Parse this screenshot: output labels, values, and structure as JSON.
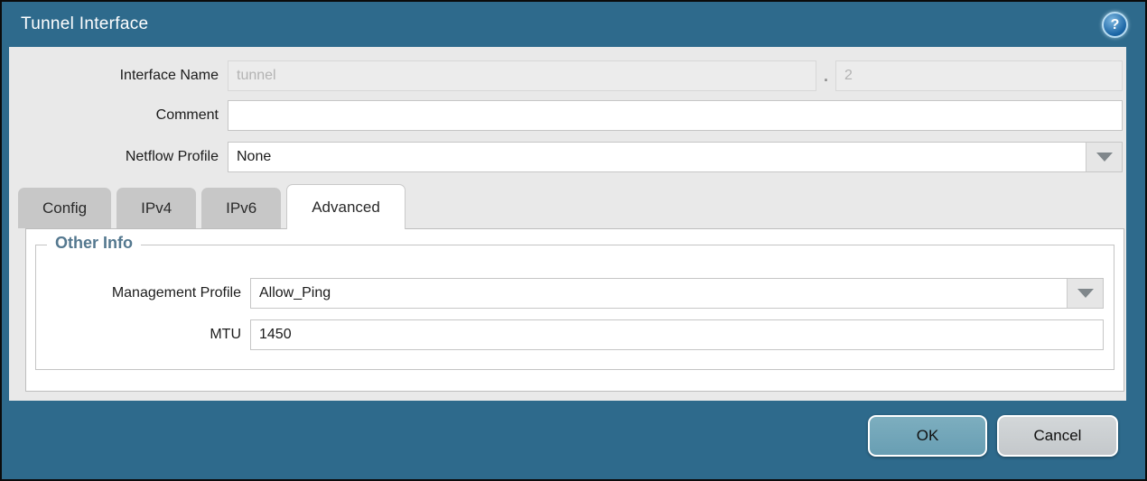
{
  "dialog": {
    "title": "Tunnel Interface"
  },
  "form": {
    "interface_name": {
      "label": "Interface Name",
      "base_value": "tunnel",
      "separator": ".",
      "sub_value": "2"
    },
    "comment": {
      "label": "Comment",
      "value": ""
    },
    "netflow_profile": {
      "label": "Netflow Profile",
      "value": "None"
    }
  },
  "tabs": [
    {
      "label": "Config",
      "active": false
    },
    {
      "label": "IPv4",
      "active": false
    },
    {
      "label": "IPv6",
      "active": false
    },
    {
      "label": "Advanced",
      "active": true
    }
  ],
  "advanced_tab": {
    "group_title": "Other Info",
    "management_profile": {
      "label": "Management Profile",
      "value": "Allow_Ping"
    },
    "mtu": {
      "label": "MTU",
      "value": "1450"
    }
  },
  "footer": {
    "ok_label": "OK",
    "cancel_label": "Cancel"
  },
  "icons": {
    "help": "?"
  },
  "colors": {
    "titlebar_bg": "#2e6a8c",
    "body_bg": "#e9e9e9",
    "legend_text": "#54788f",
    "ok_button": "#6f9fb4",
    "cancel_button": "#c9cdd0",
    "inactive_tab": "#c7c7c7"
  }
}
